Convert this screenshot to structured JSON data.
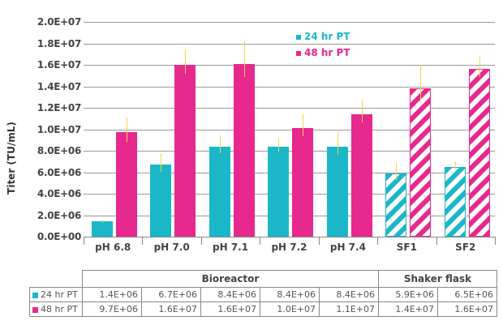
{
  "chart_data": {
    "type": "bar",
    "title": "",
    "xlabel": "",
    "ylabel": "Titer (TU/mL)",
    "ylim": [
      0,
      20000000
    ],
    "yticks": [
      "0.0E+00",
      "2.0E+06",
      "4.0E+06",
      "6.0E+06",
      "8.0E+06",
      "1.0E+07",
      "1.2E+07",
      "1.4E+07",
      "1.6E+07",
      "1.8E+07",
      "2.0E+07"
    ],
    "grid": true,
    "legend_position": "top-right inside",
    "categories": [
      "pH 6.8",
      "pH 7.0",
      "pH 7.1",
      "pH 7.2",
      "pH 7.4",
      "SF1",
      "SF2"
    ],
    "groups": [
      {
        "name": "Bioreactor",
        "categories": [
          "pH 6.8",
          "pH 7.0",
          "pH 7.1",
          "pH 7.2",
          "pH 7.4"
        ]
      },
      {
        "name": "Shaker flask",
        "categories": [
          "SF1",
          "SF2"
        ]
      }
    ],
    "series": [
      {
        "name": "24 hr PT",
        "color": "#1bb7c9",
        "values": [
          1400000,
          6700000,
          8400000,
          8400000,
          8400000,
          5900000,
          6500000
        ],
        "error": [
          200000,
          1100000,
          1000000,
          800000,
          1300000,
          1000000,
          500000
        ]
      },
      {
        "name": "48 hr PT",
        "color": "#e6288f",
        "values": [
          9700000,
          16000000,
          16100000,
          10100000,
          11400000,
          13800000,
          15600000
        ],
        "error": [
          1400000,
          1400000,
          2100000,
          1300000,
          1300000,
          2200000,
          1200000
        ]
      }
    ],
    "hatched_categories": [
      "SF1",
      "SF2"
    ]
  },
  "legend": {
    "items": [
      {
        "label": "24 hr PT",
        "color": "#1bb7c9"
      },
      {
        "label": "48 hr PT",
        "color": "#e6288f"
      }
    ]
  },
  "table": {
    "groups": [
      "Bioreactor",
      "Shaker flask"
    ],
    "rows": [
      {
        "label": "24 hr PT",
        "color": "#1bb7c9",
        "cells": [
          "1.4E+06",
          "6.7E+06",
          "8.4E+06",
          "8.4E+06",
          "8.4E+06",
          "5.9E+06",
          "6.5E+06"
        ]
      },
      {
        "label": "48 hr PT",
        "color": "#e6288f",
        "cells": [
          "9.7E+06",
          "1.6E+07",
          "1.6E+07",
          "1.0E+07",
          "1.1E+07",
          "1.4E+07",
          "1.6E+07"
        ]
      }
    ]
  }
}
